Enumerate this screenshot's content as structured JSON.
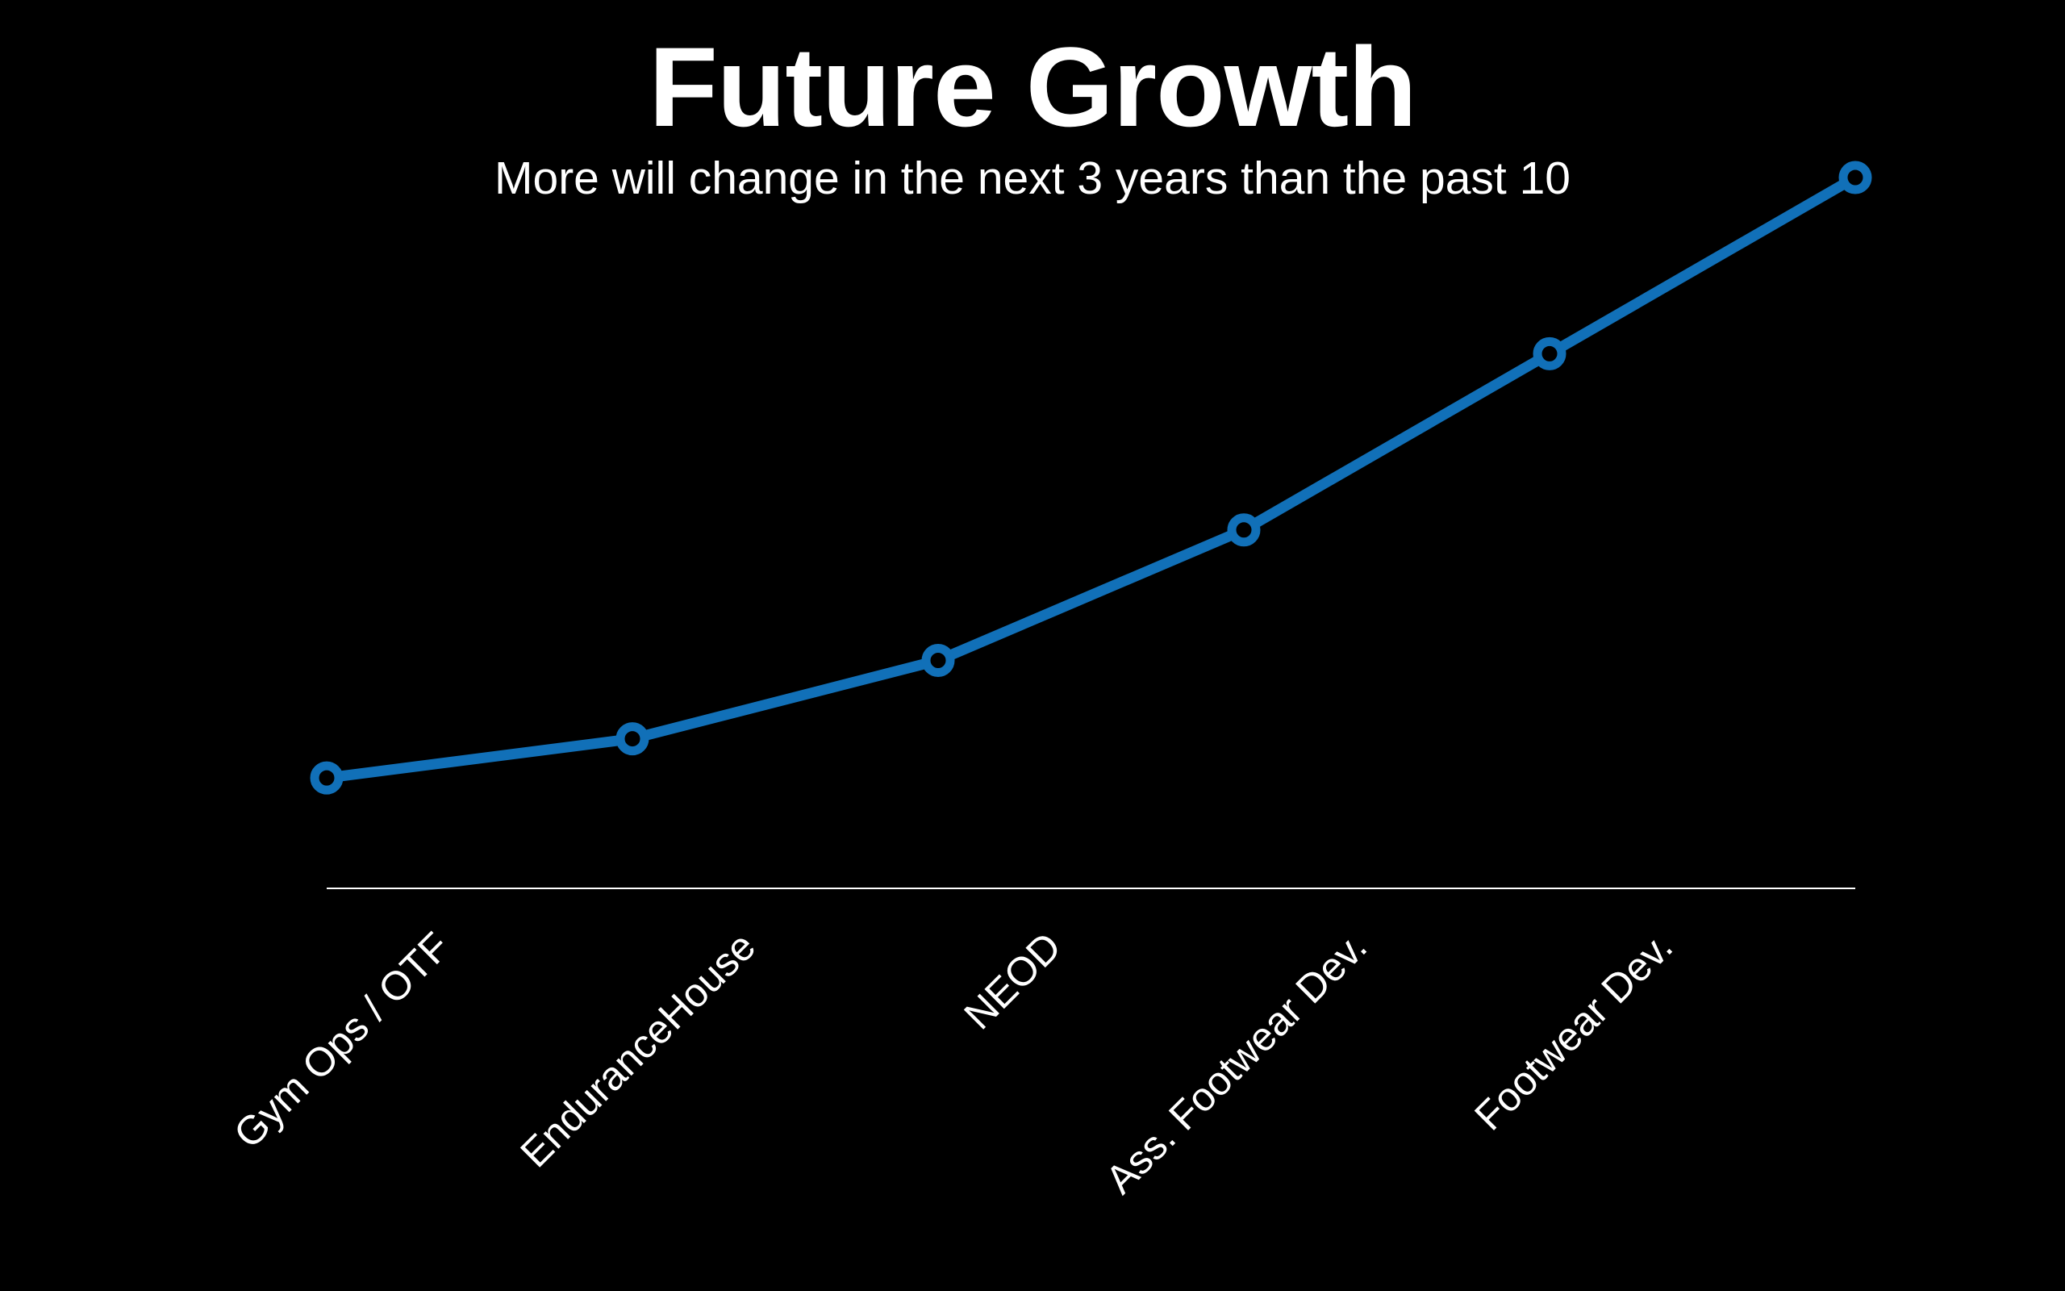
{
  "slide": {
    "title": "Future Growth",
    "subtitle": "More will change in the next 3 years than the past 10"
  },
  "colors": {
    "background": "#000000",
    "text": "#ffffff",
    "line": "#1170b8",
    "axis": "#ffffff"
  },
  "chart_data": {
    "type": "line",
    "title": "Future Growth",
    "subtitle": "More will change in the next 3 years than the past 10",
    "xlabel": "",
    "ylabel": "",
    "categories": [
      "Gym Ops / OTF",
      "EnduranceHouse",
      "NEOD",
      "Ass. Footwear Dev.",
      "Footwear Dev.",
      ""
    ],
    "series": [
      {
        "values": [
          1,
          1.6,
          2.8,
          4.8,
          7.5,
          10.2
        ],
        "color": "#1170b8",
        "marker": "open-circle"
      }
    ],
    "ylim": [
      0,
      10.2
    ],
    "grid": false,
    "legend": "none",
    "y_axis_visible": false
  }
}
